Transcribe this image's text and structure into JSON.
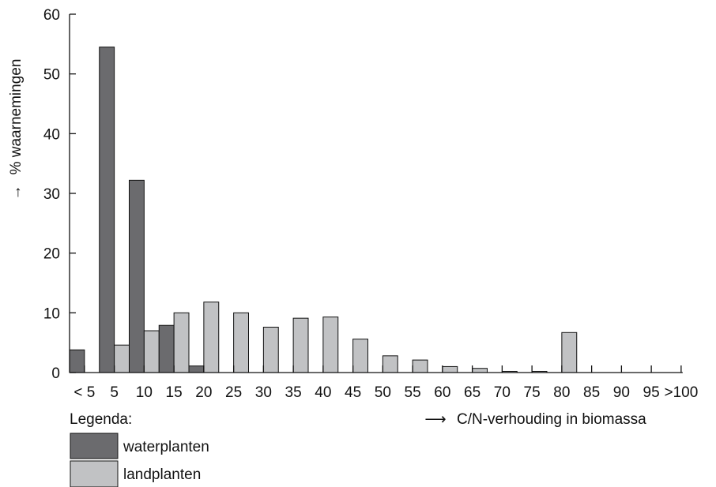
{
  "chart_data": {
    "type": "bar",
    "ylabel": "% waarnemingen",
    "ylabel_arrow": "→",
    "xlabel": "C/N-verhouding in biomassa",
    "xlabel_arrow": "⟶",
    "ylim": [
      0,
      60
    ],
    "yticks": [
      "0",
      "10",
      "20",
      "30",
      "40",
      "50",
      "60"
    ],
    "xtick_labels": [
      "< 5",
      "5",
      "10",
      "15",
      "20",
      "25",
      "30",
      "35",
      "40",
      "45",
      "50",
      "55",
      "60",
      "65",
      "70",
      "75",
      "80",
      "85",
      "90",
      "95",
      ">100"
    ],
    "grid": false,
    "legend_title": "Legenda:",
    "series": [
      {
        "name": "waterplanten",
        "color": "#6b6b6e",
        "values": [
          3.8,
          54.5,
          32.2,
          7.9,
          1.1,
          0,
          0,
          0,
          0,
          0,
          0,
          0,
          0,
          0,
          0,
          0,
          0,
          0,
          0,
          0,
          0
        ]
      },
      {
        "name": "landplanten",
        "color": "#c1c2c4",
        "values": [
          0,
          4.6,
          7.0,
          10.0,
          11.8,
          10.0,
          7.6,
          9.1,
          9.3,
          5.6,
          2.8,
          2.1,
          1.0,
          0.7,
          0.2,
          0.2,
          6.7,
          0,
          0,
          0,
          0
        ]
      }
    ]
  }
}
